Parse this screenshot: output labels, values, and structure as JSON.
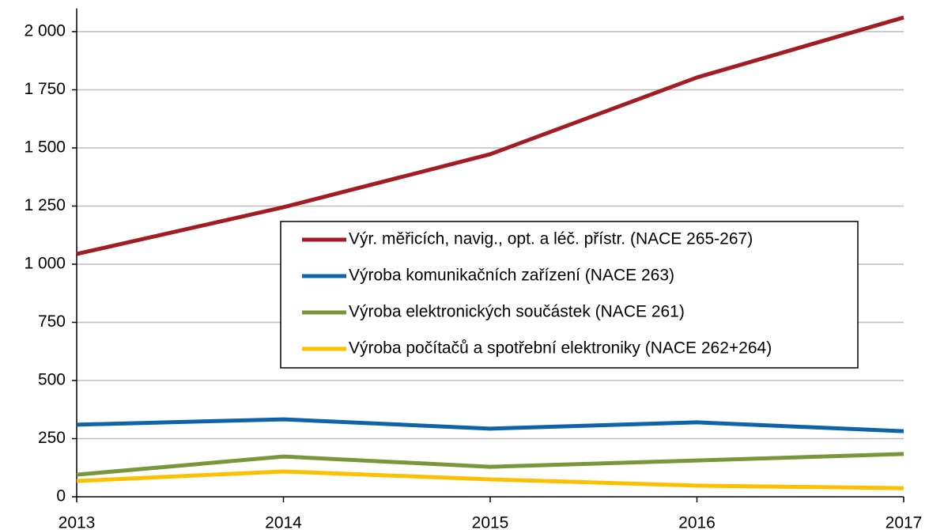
{
  "chart_data": {
    "type": "line",
    "x": [
      2013,
      2014,
      2015,
      2016,
      2017
    ],
    "xlim": [
      2013,
      2017
    ],
    "xticks": [
      2013,
      2014,
      2015,
      2016,
      2017
    ],
    "ylim": [
      0,
      2100
    ],
    "yticks": [
      0,
      250,
      500,
      750,
      {
        "value": 1000,
        "label": "1 000"
      },
      {
        "value": 1250,
        "label": "1 250"
      },
      {
        "value": 1500,
        "label": "1 500"
      },
      {
        "value": 1750,
        "label": "1 750"
      },
      {
        "value": 2000,
        "label": "2 000"
      }
    ],
    "grid": true,
    "legend": "center",
    "series": [
      {
        "name": "Výr. měřicích, navig., opt. a léč. přístr. (NACE 265-267)",
        "color": "#a31c24",
        "values": [
          1044,
          1245,
          1473,
          1803,
          2061
        ]
      },
      {
        "name": "Výroba komunikačních zařízení (NACE 263)",
        "color": "#0e64a8",
        "values": [
          310,
          333,
          293,
          320,
          282
        ]
      },
      {
        "name": "Výroba elektronických součástek (NACE 261)",
        "color": "#76973a",
        "values": [
          95,
          173,
          129,
          156,
          184
        ]
      },
      {
        "name": "Výroba počítačů a spotřební elektroniky (NACE 262+264)",
        "color": "#fcc000",
        "values": [
          68,
          109,
          75,
          48,
          37
        ]
      }
    ]
  }
}
